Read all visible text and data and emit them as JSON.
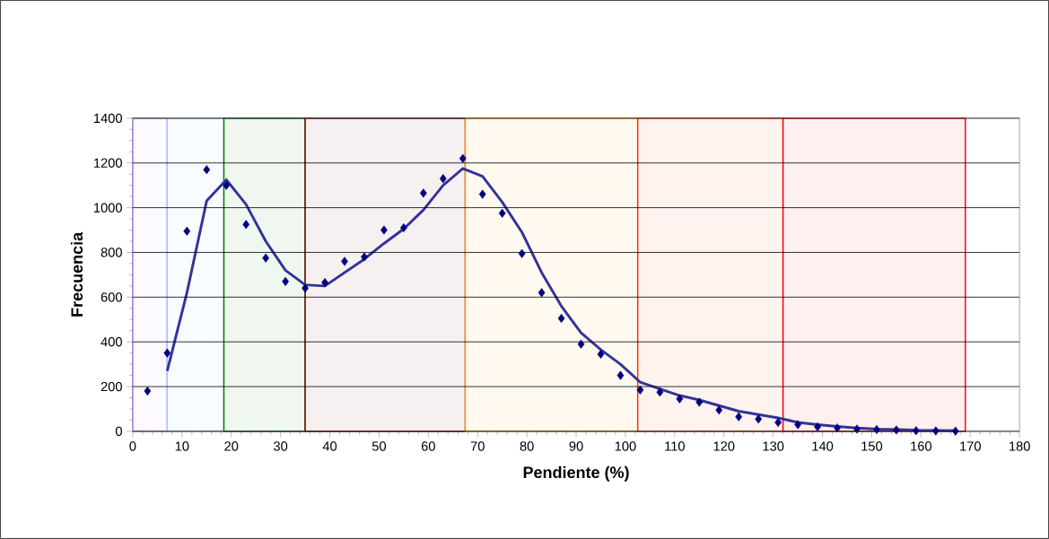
{
  "chart_data": {
    "type": "scatter",
    "xlabel": "Pendiente (%)",
    "ylabel": "Frecuencia",
    "xlim": [
      0,
      180
    ],
    "ylim": [
      0,
      1400
    ],
    "xticks": [
      0,
      10,
      20,
      30,
      40,
      50,
      60,
      70,
      80,
      90,
      100,
      110,
      120,
      130,
      140,
      150,
      160,
      170,
      180
    ],
    "yticks": [
      0,
      200,
      400,
      600,
      800,
      1000,
      1200,
      1400
    ],
    "grid": "y",
    "series": [
      {
        "marker": "diamond",
        "color": "#000080",
        "x": [
          3,
          7,
          11,
          15,
          19,
          23,
          27,
          31,
          35,
          39,
          43,
          47,
          51,
          55,
          59,
          63,
          67,
          71,
          75,
          79,
          83,
          87,
          91,
          95,
          99,
          103,
          107,
          111,
          115,
          119,
          123,
          127,
          131,
          135,
          139,
          143,
          147,
          151,
          155,
          159,
          163,
          167
        ],
        "values": [
          180,
          350,
          895,
          1170,
          1100,
          925,
          775,
          670,
          640,
          665,
          760,
          780,
          900,
          910,
          1065,
          1130,
          1220,
          1060,
          975,
          795,
          620,
          505,
          390,
          345,
          250,
          185,
          175,
          145,
          130,
          95,
          65,
          55,
          40,
          30,
          20,
          15,
          10,
          8,
          6,
          3,
          2,
          1
        ]
      },
      {
        "type": "line",
        "marker": "none",
        "color": "#333399",
        "x": [
          7,
          11,
          15,
          19,
          23,
          27,
          31,
          35,
          39,
          43,
          47,
          51,
          55,
          59,
          63,
          67,
          71,
          75,
          79,
          83,
          87,
          91,
          95,
          99,
          103,
          107,
          111,
          115,
          119,
          123,
          127,
          131,
          135,
          139,
          143,
          147,
          151,
          155,
          159,
          163,
          167
        ],
        "values": [
          270,
          620,
          1030,
          1125,
          1015,
          850,
          720,
          655,
          650,
          710,
          770,
          840,
          905,
          990,
          1100,
          1175,
          1140,
          1025,
          890,
          710,
          560,
          440,
          365,
          300,
          220,
          190,
          160,
          140,
          115,
          90,
          75,
          60,
          40,
          30,
          22,
          15,
          10,
          8,
          5,
          4,
          3
        ]
      }
    ],
    "bands": [
      {
        "axis": "x",
        "from": 0,
        "to": 7,
        "color": "#cc99ff"
      },
      {
        "axis": "x",
        "from": 7,
        "to": 18.5,
        "color": "#99ccff"
      },
      {
        "axis": "x",
        "from": 18.5,
        "to": 35,
        "color": "#008000"
      },
      {
        "axis": "x",
        "from": 35,
        "to": 67.5,
        "color": "#800000"
      },
      {
        "axis": "x",
        "from": 67.5,
        "to": 102.5,
        "color": "#ff9900"
      },
      {
        "axis": "x",
        "from": 102.5,
        "to": 132,
        "color": "#ff3300"
      },
      {
        "axis": "x",
        "from": 132,
        "to": 169,
        "color": "#ff0000"
      }
    ]
  }
}
